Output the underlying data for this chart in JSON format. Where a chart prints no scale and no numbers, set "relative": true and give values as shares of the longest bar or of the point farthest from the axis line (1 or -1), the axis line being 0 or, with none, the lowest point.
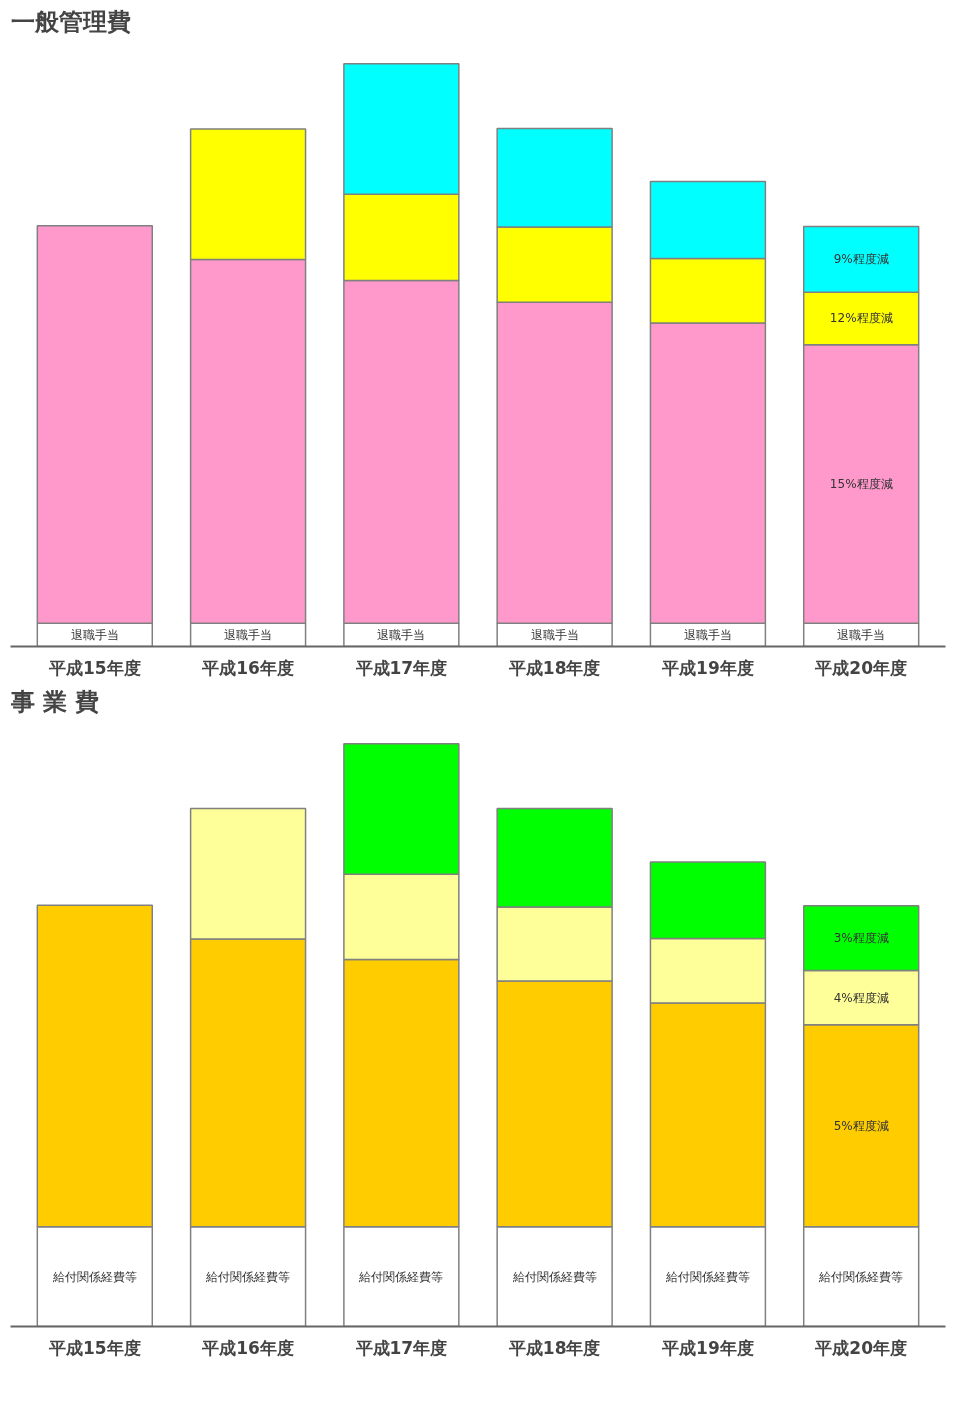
{
  "chart_data": [
    {
      "type": "bar",
      "title": "一般管理費",
      "stacked": true,
      "relative": true,
      "grid": false,
      "legend": false,
      "categories": [
        "平成15年度",
        "平成16年度",
        "平成17年度",
        "平成18年度",
        "平成19年度",
        "平成20年度"
      ],
      "series": [
        {
          "name": "退職手当",
          "color": "#ffffff",
          "values": [
            0.04,
            0.04,
            0.04,
            0.04,
            0.04,
            0.04
          ]
        },
        {
          "name": "15%程度減",
          "color": "#ff99cc",
          "values": [
            0.682,
            0.624,
            0.588,
            0.551,
            0.515,
            0.478
          ]
        },
        {
          "name": "12%程度減",
          "color": "#ffff00",
          "values": [
            null,
            0.224,
            0.148,
            0.129,
            0.111,
            0.09
          ]
        },
        {
          "name": "9%程度減",
          "color": "#00ffff",
          "values": [
            null,
            null,
            0.224,
            0.169,
            0.132,
            0.113
          ]
        }
      ]
    },
    {
      "type": "bar",
      "title": "事 業 費",
      "stacked": true,
      "relative": true,
      "grid": false,
      "legend": false,
      "categories": [
        "平成15年度",
        "平成16年度",
        "平成17年度",
        "平成18年度",
        "平成19年度",
        "平成20年度"
      ],
      "series": [
        {
          "name": "給付関係経費等",
          "color": "#ffffff",
          "values": [
            0.171,
            0.171,
            0.171,
            0.171,
            0.171,
            0.171
          ]
        },
        {
          "name": "5%程度減",
          "color": "#ffcc00",
          "values": [
            0.552,
            0.494,
            0.459,
            0.422,
            0.384,
            0.347
          ]
        },
        {
          "name": "4%程度減",
          "color": "#ffff99",
          "values": [
            null,
            0.224,
            0.146,
            0.127,
            0.111,
            0.093
          ]
        },
        {
          "name": "3%程度減",
          "color": "#00ff00",
          "values": [
            null,
            null,
            0.224,
            0.169,
            0.131,
            0.111
          ]
        }
      ]
    }
  ]
}
